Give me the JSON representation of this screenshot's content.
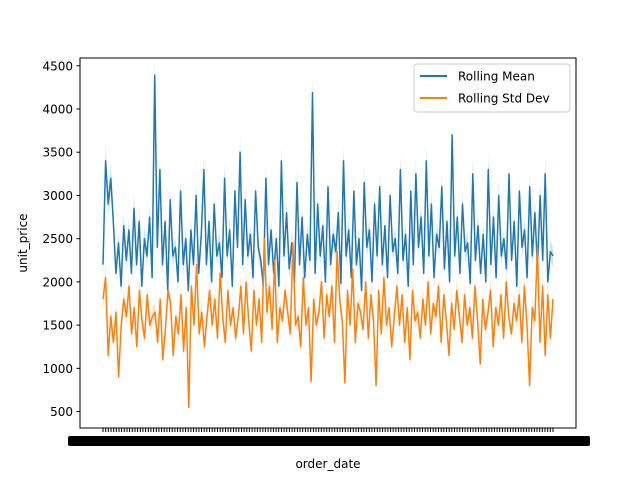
{
  "chart_data": {
    "type": "line",
    "title": "",
    "xlabel": "order_date",
    "ylabel": "unit_price",
    "ylim": [
      310,
      4590
    ],
    "yticks": [
      500,
      1000,
      1500,
      2000,
      2500,
      3000,
      3500,
      4000,
      4500
    ],
    "grid": false,
    "legend": "top-right",
    "x_tick_labels_overlapping": true,
    "series": [
      {
        "name": "Rolling Mean",
        "color": "#1f77b4",
        "values": [
          2200,
          3400,
          2900,
          3200,
          2700,
          2100,
          2450,
          1950,
          2650,
          2250,
          2600,
          2100,
          2850,
          2200,
          2700,
          1950,
          2500,
          2300,
          2750,
          2050,
          4390,
          2400,
          3300,
          2200,
          2700,
          1900,
          2950,
          2300,
          2400,
          2000,
          3050,
          2200,
          2500,
          1900,
          2600,
          2200,
          3000,
          2100,
          2550,
          3300,
          2200,
          2700,
          2000,
          2900,
          2300,
          2450,
          2050,
          3200,
          2300,
          2600,
          1950,
          3050,
          2400,
          3500,
          2200,
          2950,
          2300,
          2550,
          2050,
          3050,
          2400,
          2250,
          1950,
          3200,
          2200,
          2600,
          2100,
          2500,
          1950,
          3400,
          2300,
          2800,
          2150,
          2450,
          2000,
          3150,
          2200,
          2750,
          2050,
          2550,
          2250,
          4190,
          2100,
          2900,
          2300,
          2650,
          2000,
          3100,
          2200,
          2550,
          2350,
          2800,
          1980,
          3400,
          2300,
          2600,
          2050,
          3050,
          2200,
          2500,
          1900,
          3150,
          2400,
          2600,
          2000,
          2900,
          2300,
          3100,
          2200,
          2650,
          2050,
          3000,
          2350,
          2500,
          2100,
          3300,
          2250,
          2550,
          1950,
          3050,
          2200,
          3250,
          2400,
          2750,
          2100,
          3400,
          2300,
          2900,
          2050,
          2550,
          2400,
          3100,
          2150,
          2700,
          2000,
          3700,
          2300,
          2750,
          2100,
          2900,
          2350,
          2450,
          1980,
          3250,
          2250,
          2650,
          2100,
          2550,
          2000,
          3300,
          2200,
          2750,
          2050,
          3000,
          2300,
          2500,
          2150,
          3250,
          2250,
          2700,
          1950,
          3050,
          2400,
          2600,
          2050,
          3100,
          2300,
          2800,
          2150,
          3000,
          2250,
          3250,
          2000,
          2350,
          2300
        ]
      },
      {
        "name": "Rolling Std Dev",
        "color": "#ff7f0e",
        "values": [
          1800,
          2050,
          1150,
          1600,
          1300,
          1650,
          900,
          1500,
          1800,
          1600,
          1950,
          1400,
          1700,
          1250,
          1900,
          1550,
          1350,
          1850,
          1500,
          1600,
          1650,
          1300,
          1800,
          1100,
          1450,
          1900,
          1750,
          1150,
          1600,
          1400,
          1850,
          1200,
          1700,
          550,
          1950,
          1500,
          2200,
          1400,
          1650,
          1250,
          1600,
          1900,
          1500,
          1800,
          1350,
          2100,
          1600,
          1300,
          1900,
          1500,
          1700,
          1350,
          1600,
          1950,
          1400,
          2000,
          1550,
          1200,
          1900,
          1500,
          1800,
          1300,
          2500,
          1650,
          1950,
          1450,
          2250,
          1300,
          1700,
          1550,
          1900,
          1650,
          1400,
          2450,
          1500,
          1600,
          1250,
          2050,
          1500,
          1700,
          850,
          1800,
          1500,
          1650,
          2000,
          1350,
          1850,
          1600,
          1950,
          1300,
          2350,
          1800,
          1550,
          830,
          1900,
          1500,
          2150,
          1300,
          1750,
          1650,
          1450,
          2000,
          1350,
          1850,
          1550,
          800,
          1900,
          1400,
          2050,
          1500,
          1700,
          1250,
          1600,
          1950,
          1500,
          1850,
          1300,
          1700,
          1100,
          1900,
          1550,
          1650,
          1350,
          1800,
          1500,
          2000,
          1400,
          1750,
          1600,
          1950,
          1300,
          1850,
          1550,
          1150,
          1750,
          1450,
          1900,
          1600,
          1300,
          1850,
          1500,
          1700,
          1350,
          1950,
          1550,
          1050,
          1800,
          1450,
          1650,
          1900,
          1250,
          1700,
          1500,
          1850,
          1350,
          2000,
          1600,
          1400,
          1750,
          1550,
          1850,
          1300,
          1950,
          1500,
          800,
          1700,
          1550,
          2400,
          1300,
          1950,
          1150,
          1850,
          1350,
          1800
        ]
      }
    ]
  }
}
